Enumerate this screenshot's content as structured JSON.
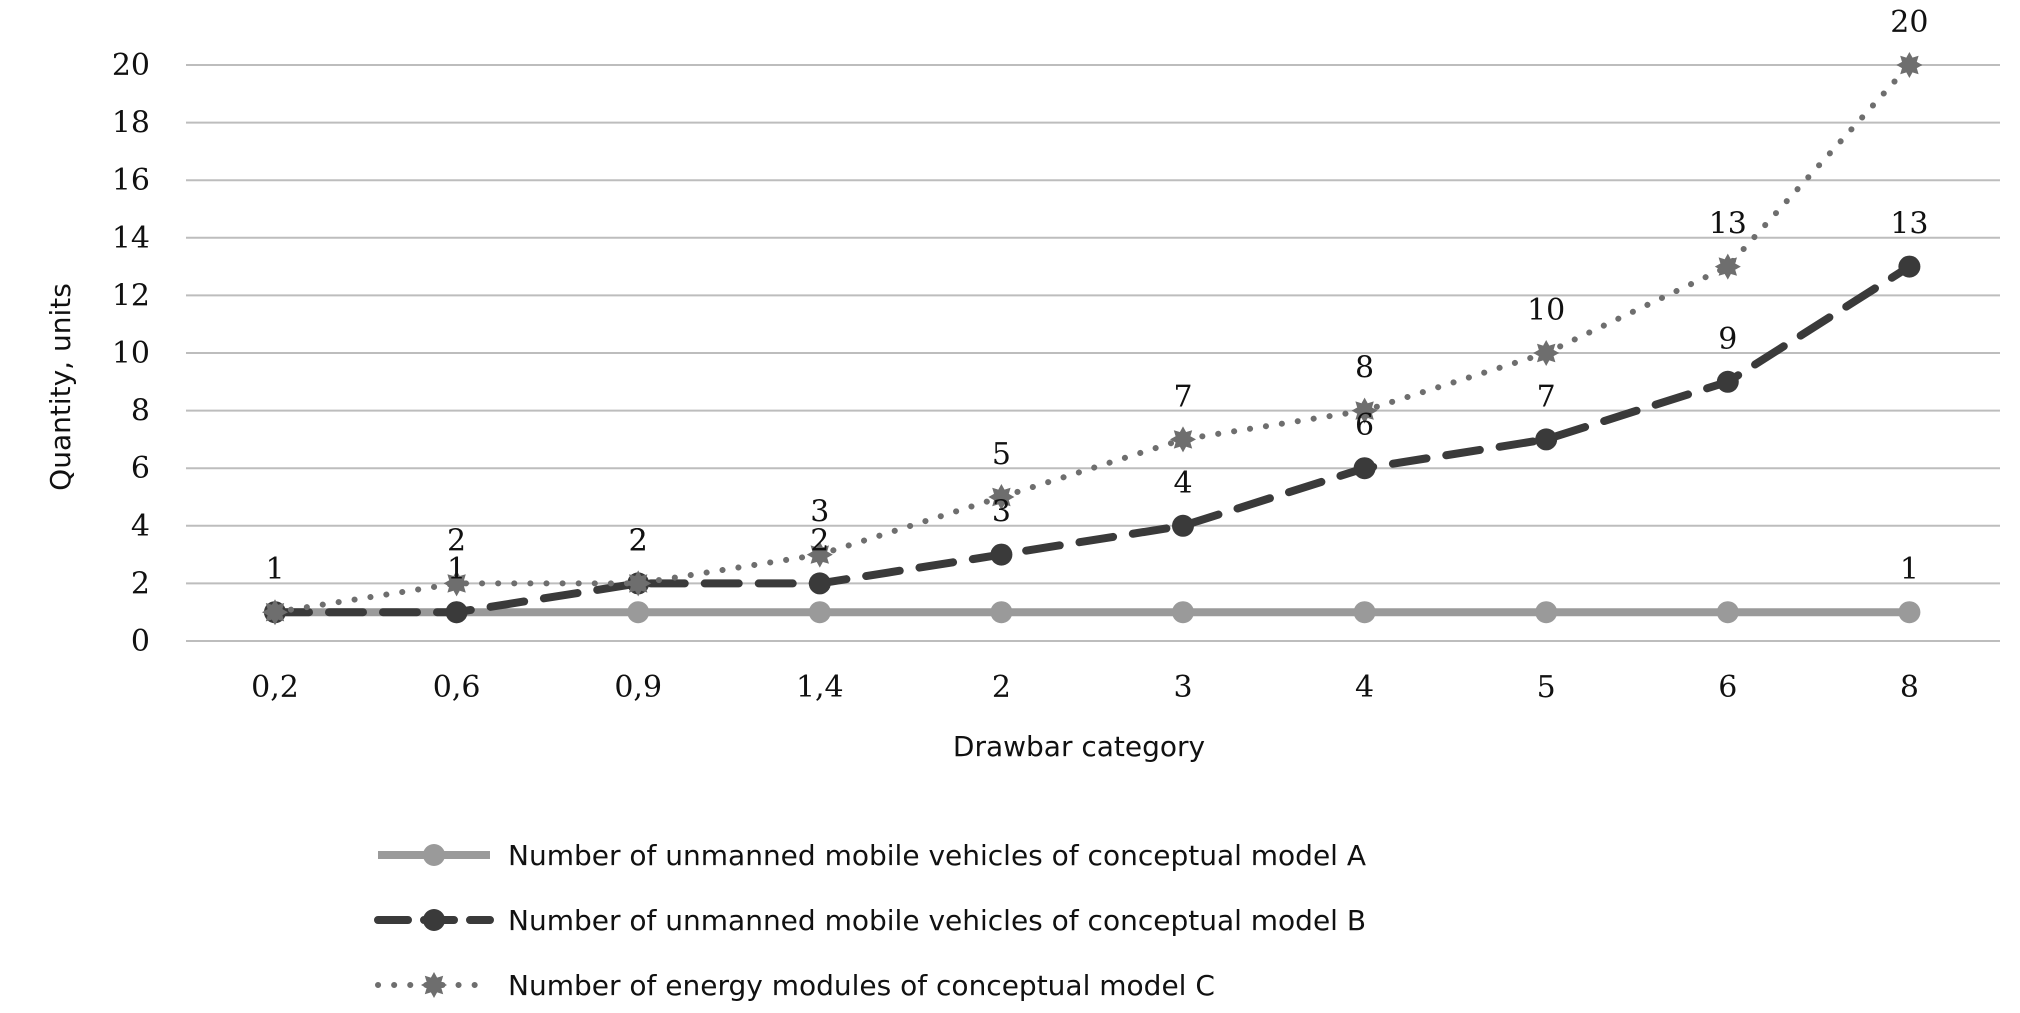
{
  "chart_data": {
    "type": "line",
    "xlabel": "Drawbar category",
    "ylabel": "Quantity, units",
    "ylim": [
      0,
      20
    ],
    "yticks": [
      0,
      2,
      4,
      6,
      8,
      10,
      12,
      14,
      16,
      18,
      20
    ],
    "grid": "horizontal",
    "legend_position": "bottom",
    "categories": [
      "0,2",
      "0,6",
      "0,9",
      "1,4",
      "2",
      "3",
      "4",
      "5",
      "6",
      "8"
    ],
    "series": [
      {
        "name": "Number of unmanned mobile vehicles of conceptual model A",
        "values": [
          1,
          1,
          1,
          1,
          1,
          1,
          1,
          1,
          1,
          1
        ],
        "data_labels": [
          "1",
          "",
          "",
          "",
          "",
          "",
          "",
          "",
          "",
          "1"
        ],
        "color": "#9a9a9a",
        "line_style": "solid",
        "marker": "circle"
      },
      {
        "name": "Number of unmanned mobile vehicles of conceptual model B",
        "values": [
          1,
          1,
          2,
          2,
          3,
          4,
          6,
          7,
          9,
          13
        ],
        "data_labels": [
          "",
          "1",
          "2",
          "2",
          "3",
          "4",
          "6",
          "7",
          "9",
          "13"
        ],
        "color": "#3a3a3a",
        "line_style": "dashed",
        "marker": "circle"
      },
      {
        "name": "Number of energy modules of conceptual model C",
        "values": [
          1,
          2,
          2,
          3,
          5,
          7,
          8,
          10,
          13,
          20
        ],
        "data_labels": [
          "",
          "2",
          "2",
          "3",
          "5",
          "7",
          "8",
          "10",
          "13",
          "20"
        ],
        "color": "#6e6e6e",
        "line_style": "dotted",
        "marker": "star"
      }
    ]
  }
}
